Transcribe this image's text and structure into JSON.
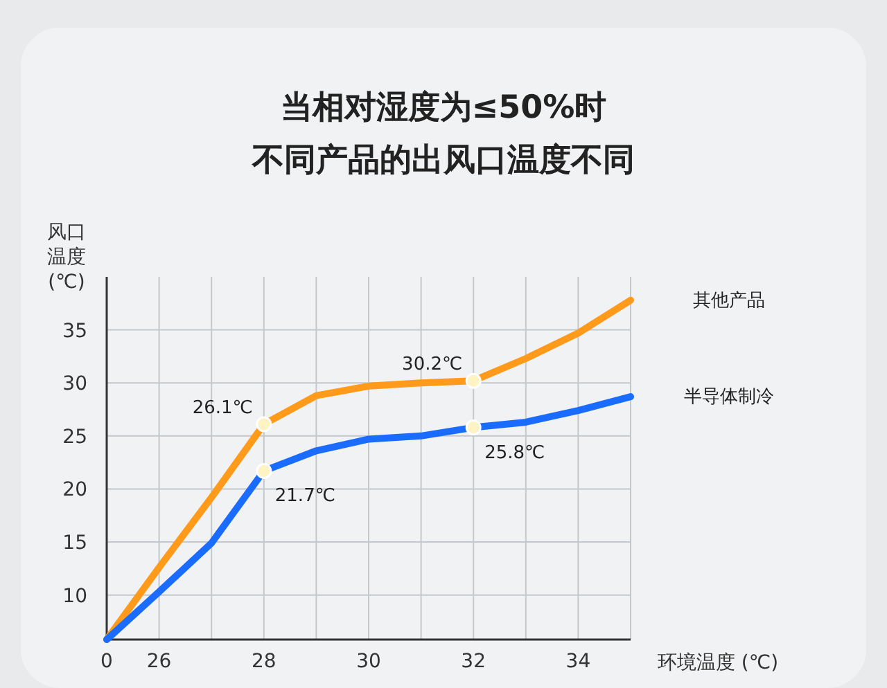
{
  "chart_data": {
    "type": "line",
    "title": "当相对湿度为≤50%时",
    "subtitle": "不同产品的出风口温度不同",
    "xlabel": "环境温度 (℃)",
    "ylabel": "风口温度(℃)",
    "categories": [
      "0",
      "26",
      null,
      "28",
      null,
      "30",
      null,
      "32",
      null,
      "34",
      null
    ],
    "ylim": [
      5.8,
      40
    ],
    "yticks": [
      10,
      15,
      20,
      25,
      30,
      35
    ],
    "grid": true,
    "line_style": "solid",
    "series": [
      {
        "name": "其他产品",
        "color": "#ff9a1a",
        "values": [
          5.8,
          12.6,
          19.2,
          26.1,
          28.8,
          29.7,
          30.0,
          30.2,
          32.3,
          34.7,
          37.8
        ],
        "value_labels": [
          null,
          null,
          null,
          "26.1℃",
          null,
          null,
          null,
          "30.2℃",
          null,
          null,
          null
        ]
      },
      {
        "name": "半导体制冷",
        "color": "#1a6cff",
        "values": [
          5.8,
          10.3,
          14.9,
          21.7,
          23.6,
          24.7,
          25.0,
          25.8,
          26.3,
          27.4,
          28.7
        ],
        "value_labels": [
          null,
          null,
          null,
          "21.7℃",
          null,
          null,
          null,
          "25.8℃",
          null,
          null,
          null
        ]
      }
    ]
  }
}
